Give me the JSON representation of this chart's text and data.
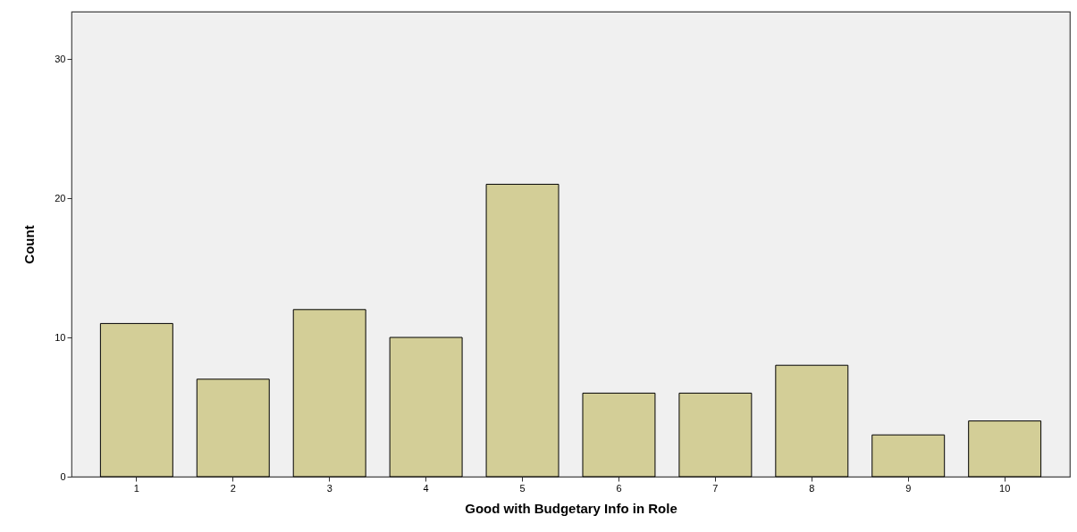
{
  "chart_data": {
    "type": "bar",
    "xlabel": "Good with Budgetary Info in Role",
    "ylabel": "Count",
    "categories": [
      "1",
      "2",
      "3",
      "4",
      "5",
      "6",
      "7",
      "8",
      "9",
      "10"
    ],
    "values": [
      11,
      7,
      12,
      10,
      21,
      6,
      6,
      8,
      3,
      4
    ],
    "color": "#d3ce97",
    "ylim": [
      0,
      33.4
    ],
    "yticks": [
      0,
      10,
      20,
      30
    ],
    "grid": false
  }
}
